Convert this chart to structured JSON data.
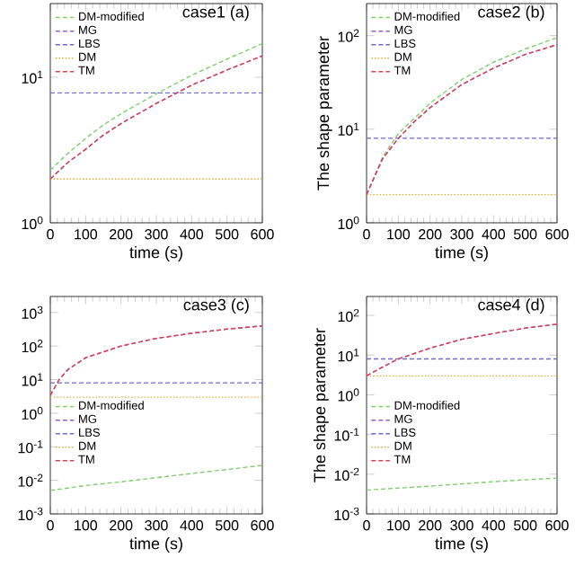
{
  "chart_data": [
    {
      "type": "line",
      "title": "case1 (a)",
      "xlabel": "time (s)",
      "xlim": [
        0,
        600
      ],
      "xticks": [
        0,
        100,
        200,
        300,
        400,
        500,
        600
      ],
      "ylim": [
        1,
        32
      ],
      "log": true,
      "yticks": [
        {
          "value": 1,
          "label": "10$^{0}$"
        },
        {
          "value": 10,
          "label": "10$^{1}$"
        }
      ],
      "legend": "top left",
      "marker": "none",
      "series": [
        {
          "name": "DM-modified",
          "color": "#7fcf6f",
          "line_style": "dashed",
          "x": [
            0,
            50,
            100,
            150,
            200,
            300,
            400,
            500,
            600
          ],
          "values": [
            2.3,
            3.0,
            3.8,
            4.7,
            5.6,
            7.7,
            10.3,
            13.3,
            17
          ]
        },
        {
          "name": "MG",
          "color": "#9a5fc0",
          "line_style": "dashed",
          "x": [
            0,
            50,
            100,
            150,
            200,
            300,
            400,
            500,
            600
          ],
          "values": [
            2.0,
            2.6,
            3.2,
            4.0,
            4.8,
            6.6,
            8.8,
            11.2,
            14
          ]
        },
        {
          "name": "LBS",
          "color": "#6a6ad8",
          "line_style": "dashed",
          "x": [
            0,
            600
          ],
          "values": [
            7.8,
            7.8
          ]
        },
        {
          "name": "DM",
          "color": "#e8b040",
          "line_style": "dotted",
          "x": [
            0,
            600
          ],
          "values": [
            2.0,
            2.0
          ]
        },
        {
          "name": "TM",
          "color": "#e04050",
          "line_style": "dashed",
          "x": [
            0,
            50,
            100,
            150,
            200,
            300,
            400,
            500,
            600
          ],
          "values": [
            2.0,
            2.6,
            3.2,
            4.0,
            4.8,
            6.6,
            8.8,
            11.2,
            14
          ]
        }
      ]
    },
    {
      "type": "line",
      "title": "case2 (b)",
      "xlabel": "time (s)",
      "ylabel": "The shape parameter",
      "xlim": [
        0,
        600
      ],
      "xticks": [
        0,
        100,
        200,
        300,
        400,
        500,
        600
      ],
      "ylim": [
        1,
        220
      ],
      "log": true,
      "yticks": [
        {
          "value": 1,
          "label": "10$^{0}$"
        },
        {
          "value": 10,
          "label": "10$^{1}$"
        },
        {
          "value": 100,
          "label": "10$^{2}$"
        }
      ],
      "legend": "top left",
      "marker": "none",
      "series": [
        {
          "name": "DM-modified",
          "color": "#7fcf6f",
          "line_style": "dashed",
          "x": [
            0,
            50,
            100,
            150,
            200,
            300,
            400,
            500,
            600
          ],
          "values": [
            2.0,
            5.0,
            9,
            13,
            19,
            34,
            52,
            72,
            95
          ]
        },
        {
          "name": "MG",
          "color": "#9a5fc0",
          "line_style": "dashed",
          "x": [
            0,
            50,
            100,
            150,
            200,
            300,
            400,
            500,
            600
          ],
          "values": [
            2.0,
            4.8,
            8,
            12,
            17,
            30,
            45,
            63,
            80
          ]
        },
        {
          "name": "LBS",
          "color": "#6a6ad8",
          "line_style": "dashed",
          "x": [
            0,
            600
          ],
          "values": [
            8,
            8
          ]
        },
        {
          "name": "DM",
          "color": "#e8b040",
          "line_style": "dotted",
          "x": [
            0,
            600
          ],
          "values": [
            2.0,
            2.0
          ]
        },
        {
          "name": "TM",
          "color": "#e04050",
          "line_style": "dashed",
          "x": [
            0,
            50,
            100,
            150,
            200,
            300,
            400,
            500,
            600
          ],
          "values": [
            2.0,
            4.8,
            8,
            12,
            17,
            30,
            45,
            63,
            80
          ]
        }
      ]
    },
    {
      "type": "line",
      "title": "case3 (c)",
      "xlabel": "time (s)",
      "xlim": [
        0,
        600
      ],
      "xticks": [
        0,
        100,
        200,
        300,
        400,
        500,
        600
      ],
      "ylim": [
        0.001,
        3000
      ],
      "log": true,
      "yticks": [
        {
          "value": 0.001,
          "label": "10$^{-3}$"
        },
        {
          "value": 0.01,
          "label": "10$^{-2}$"
        },
        {
          "value": 0.1,
          "label": "10$^{-1}$"
        },
        {
          "value": 1,
          "label": "10$^{0}$"
        },
        {
          "value": 10,
          "label": "10$^{1}$"
        },
        {
          "value": 100,
          "label": "10$^{2}$"
        },
        {
          "value": 1000,
          "label": "10$^{3}$"
        }
      ],
      "legend": "left",
      "marker": "none",
      "series": [
        {
          "name": "DM-modified",
          "color": "#7fcf6f",
          "line_style": "dashed",
          "x": [
            0,
            100,
            200,
            300,
            400,
            500,
            600
          ],
          "values": [
            0.005,
            0.007,
            0.009,
            0.012,
            0.016,
            0.021,
            0.028
          ]
        },
        {
          "name": "MG",
          "color": "#9a5fc0",
          "line_style": "dashed",
          "x": [
            0,
            25,
            50,
            100,
            200,
            300,
            400,
            500,
            600
          ],
          "values": [
            3.4,
            10,
            20,
            45,
            100,
            170,
            240,
            320,
            400
          ]
        },
        {
          "name": "LBS",
          "color": "#6a6ad8",
          "line_style": "dashed",
          "x": [
            0,
            600
          ],
          "values": [
            8,
            8
          ]
        },
        {
          "name": "DM",
          "color": "#e8b040",
          "line_style": "dotted",
          "x": [
            0,
            600
          ],
          "values": [
            3,
            3
          ]
        },
        {
          "name": "TM",
          "color": "#e04050",
          "line_style": "dashed",
          "x": [
            0,
            25,
            50,
            100,
            200,
            300,
            400,
            500,
            600
          ],
          "values": [
            3.4,
            10,
            20,
            45,
            100,
            170,
            240,
            320,
            400
          ]
        }
      ]
    },
    {
      "type": "line",
      "title": "case4 (d)",
      "xlabel": "time (s)",
      "ylabel": "The shape parameter",
      "xlim": [
        0,
        600
      ],
      "xticks": [
        0,
        100,
        200,
        300,
        400,
        500,
        600
      ],
      "ylim": [
        0.001,
        300
      ],
      "log": true,
      "yticks": [
        {
          "value": 0.001,
          "label": "10$^{-3}$"
        },
        {
          "value": 0.01,
          "label": "10$^{-2}$"
        },
        {
          "value": 0.1,
          "label": "10$^{-1}$"
        },
        {
          "value": 1,
          "label": "10$^{0}$"
        },
        {
          "value": 10,
          "label": "10$^{1}$"
        },
        {
          "value": 100,
          "label": "10$^{2}$"
        }
      ],
      "legend": "left",
      "marker": "none",
      "series": [
        {
          "name": "DM-modified",
          "color": "#7fcf6f",
          "line_style": "dashed",
          "x": [
            0,
            200,
            400,
            600
          ],
          "values": [
            0.004,
            0.005,
            0.0065,
            0.008
          ]
        },
        {
          "name": "MG",
          "color": "#9a5fc0",
          "line_style": "dashed",
          "x": [
            0,
            50,
            100,
            200,
            300,
            400,
            500,
            600
          ],
          "values": [
            3,
            5,
            8,
            15,
            25,
            35,
            48,
            60
          ]
        },
        {
          "name": "LBS",
          "color": "#6a6ad8",
          "line_style": "dashed",
          "x": [
            0,
            600
          ],
          "values": [
            8,
            8
          ]
        },
        {
          "name": "DM",
          "color": "#e8b040",
          "line_style": "dotted",
          "x": [
            0,
            600
          ],
          "values": [
            3,
            3
          ]
        },
        {
          "name": "TM",
          "color": "#e04050",
          "line_style": "dashed",
          "x": [
            0,
            50,
            100,
            200,
            300,
            400,
            500,
            600
          ],
          "values": [
            3,
            5,
            8,
            15,
            25,
            35,
            48,
            60
          ]
        }
      ]
    }
  ]
}
